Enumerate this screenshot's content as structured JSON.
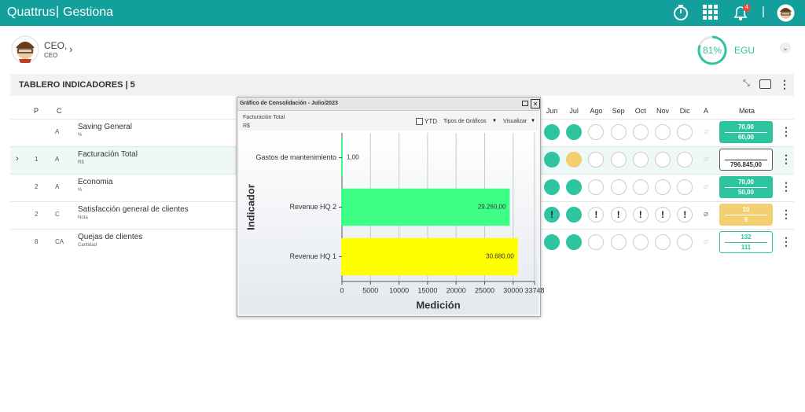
{
  "header": {
    "brand": "Quattrus",
    "app": "Gestiona",
    "notifications": "4"
  },
  "user": {
    "name": "CEO,",
    "role": "CEO",
    "score": {
      "value": 81,
      "label": "81%"
    },
    "unit": "EGU"
  },
  "panel": {
    "title": "TABLERO INDICADORES | 5"
  },
  "table": {
    "columns": {
      "p": "P",
      "c": "C",
      "months": [
        "Jun",
        "Jul",
        "Ago",
        "Sep",
        "Oct",
        "Nov",
        "Dic"
      ],
      "a": "A",
      "meta": "Meta"
    },
    "rows": [
      {
        "c": "A",
        "name": "Saving General",
        "unit": "%",
        "months": [
          {
            "color": "#2ec4a0"
          },
          {
            "color": "#2ec4a0"
          },
          null,
          null,
          null,
          null,
          null
        ],
        "meta": [
          "70,00",
          "60,00"
        ],
        "meta_color": "#2ec4a0"
      },
      {
        "p": "1",
        "c": "A",
        "name": "Facturación Total",
        "unit": "R$",
        "months": [
          {
            "color": "#2ec4a0"
          },
          {
            "color": "#f2cf6e"
          },
          null,
          null,
          null,
          null,
          null
        ],
        "meta": [
          null,
          "796.845,00"
        ],
        "meta_color": "#ffffff"
      },
      {
        "p": "2",
        "c": "A",
        "name": "Economia",
        "unit": "%",
        "months": [
          {
            "color": "#2ec4a0"
          },
          {
            "color": "#2ec4a0"
          },
          null,
          null,
          null,
          null,
          null
        ],
        "meta": [
          "70,00",
          "50,00"
        ],
        "meta_color": "#2ec4a0"
      },
      {
        "p": "2",
        "c": "C",
        "name": "Satisfacción general de clientes",
        "unit": "Nota",
        "months": [
          {
            "color": "#2ec4a0",
            "mark": "!"
          },
          {
            "color": "#2ec4a0"
          },
          {
            "mark": "!"
          },
          {
            "mark": "!"
          },
          {
            "mark": "!"
          },
          {
            "mark": "!"
          },
          {
            "mark": "!"
          }
        ],
        "meta": [
          "10",
          "9"
        ],
        "meta_color": "#f4cf72"
      },
      {
        "p": "8",
        "c": "CA",
        "name": "Quejas de clientes",
        "unit": "Cantidad",
        "months": [
          {
            "color": "#2ec4a0"
          },
          {
            "color": "#2ec4a0"
          },
          null,
          null,
          null,
          null,
          null
        ],
        "meta": [
          "132",
          "111"
        ],
        "meta_color": "#ffffff"
      }
    ]
  },
  "dialog": {
    "title": "Gráfico de Consolidación - Julio/2023",
    "indicator": "Facturación Total",
    "unit": "R$",
    "ytd": "YTD",
    "chart_types": "Tipos de Gráficos",
    "view": "Visualizar"
  },
  "chart_data": {
    "type": "bar",
    "orientation": "horizontal",
    "categories": [
      "Gastos de mantenimiento",
      "Revenue HQ 2",
      "Revenue HQ 1"
    ],
    "values": [
      1,
      29260,
      30680
    ],
    "value_labels": [
      "1,00",
      "29.260,00",
      "30.680,00"
    ],
    "colors": [
      "#3dff85",
      "#3dff85",
      "#ffff00"
    ],
    "xlim": [
      0,
      33748
    ],
    "xticks": [
      0,
      5000,
      10000,
      15000,
      20000,
      25000,
      30000,
      33748
    ],
    "xlabel": "Medición",
    "ylabel": "Indicador",
    "grid": true
  }
}
